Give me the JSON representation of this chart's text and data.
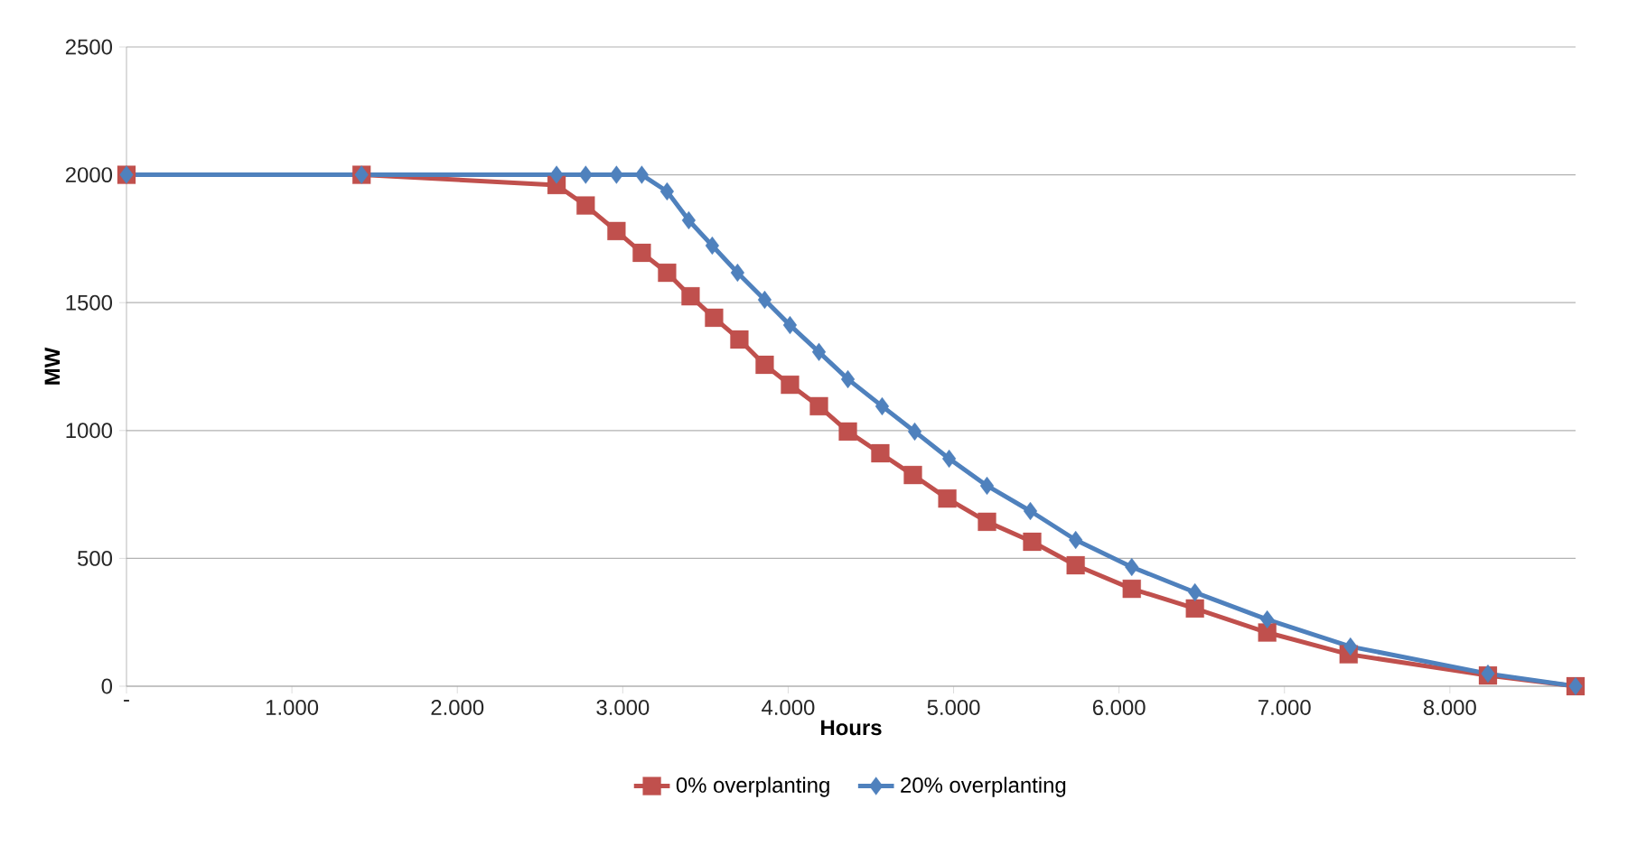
{
  "chart_data": {
    "type": "line",
    "xlabel": "Hours",
    "ylabel": "MW",
    "xlim": [
      0,
      8760
    ],
    "ylim": [
      0,
      2500
    ],
    "xticks": [
      {
        "value": 0,
        "label": "-"
      },
      {
        "value": 1000,
        "label": "1.000"
      },
      {
        "value": 2000,
        "label": "2.000"
      },
      {
        "value": 3000,
        "label": "3.000"
      },
      {
        "value": 4000,
        "label": "4.000"
      },
      {
        "value": 5000,
        "label": "5.000"
      },
      {
        "value": 6000,
        "label": "6.000"
      },
      {
        "value": 7000,
        "label": "7.000"
      },
      {
        "value": 8000,
        "label": "8.000"
      }
    ],
    "yticks": [
      0,
      500,
      1000,
      1500,
      2000,
      2500
    ],
    "grid": "y",
    "legend": "bottom",
    "line_style": "solid",
    "series": [
      {
        "name": "0% overplanting",
        "color": "#c0504d",
        "marker": "square",
        "x": [
          0,
          1421,
          2600,
          2776,
          2962,
          3115,
          3268,
          3410,
          3552,
          3705,
          3858,
          4011,
          4186,
          4361,
          4557,
          4754,
          4962,
          5202,
          5475,
          5738,
          6077,
          6459,
          6896,
          7388,
          8230,
          8760
        ],
        "values": [
          2000,
          2000,
          1960,
          1880,
          1780,
          1695,
          1617,
          1525,
          1441,
          1356,
          1257,
          1179,
          1095,
          996,
          911,
          826,
          734,
          643,
          565,
          473,
          381,
          304,
          210,
          125,
          42,
          0
        ]
      },
      {
        "name": "20% overplanting",
        "color": "#4f81bd",
        "marker": "diamond",
        "x": [
          0,
          1421,
          2600,
          2776,
          2962,
          3115,
          3268,
          3399,
          3541,
          3694,
          3858,
          4011,
          4186,
          4361,
          4568,
          4765,
          4973,
          5202,
          5464,
          5738,
          6077,
          6459,
          6896,
          7399,
          8230,
          8760
        ],
        "values": [
          2000,
          2000,
          2000,
          2000,
          2000,
          2000,
          1935,
          1822,
          1723,
          1617,
          1511,
          1412,
          1307,
          1201,
          1095,
          996,
          890,
          784,
          685,
          572,
          466,
          367,
          261,
          155,
          49,
          0
        ]
      }
    ]
  }
}
